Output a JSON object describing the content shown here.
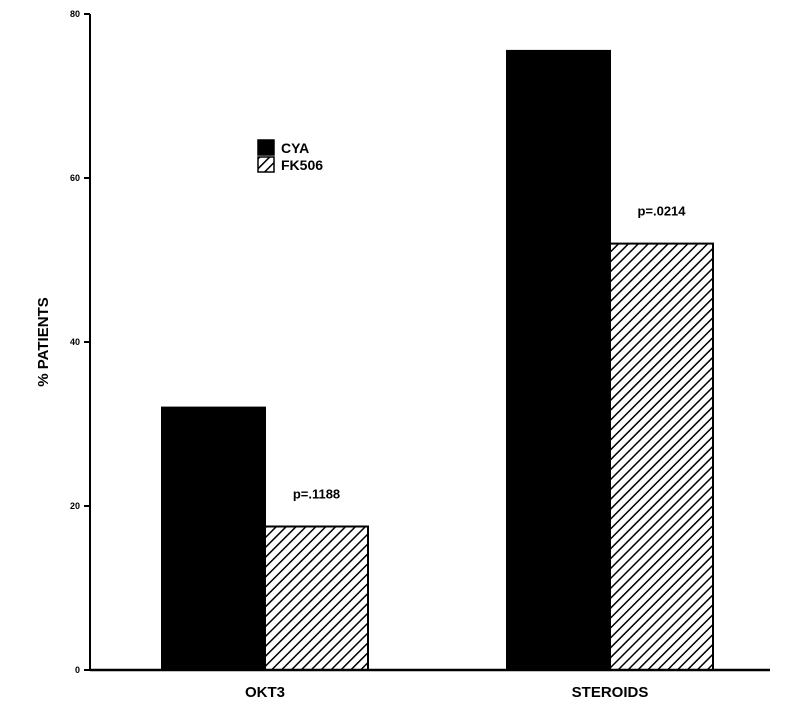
{
  "chart_data": {
    "type": "bar",
    "ylabel": "% PATIENTS",
    "xlabel": "",
    "ylim": [
      0,
      80
    ],
    "yticks": [
      0,
      20,
      40,
      60,
      80
    ],
    "categories": [
      "OKT3",
      "STEROIDS"
    ],
    "series": [
      {
        "name": "CYA",
        "values": [
          32,
          75.5
        ],
        "fill": "#000000"
      },
      {
        "name": "FK506",
        "values": [
          17.5,
          52
        ],
        "fill": "hatch"
      }
    ],
    "annotations": [
      {
        "category": "OKT3",
        "text": "p=.1188"
      },
      {
        "category": "STEROIDS",
        "text": "p=.0214"
      }
    ],
    "legend_position": "upper-left",
    "grid": false
  }
}
